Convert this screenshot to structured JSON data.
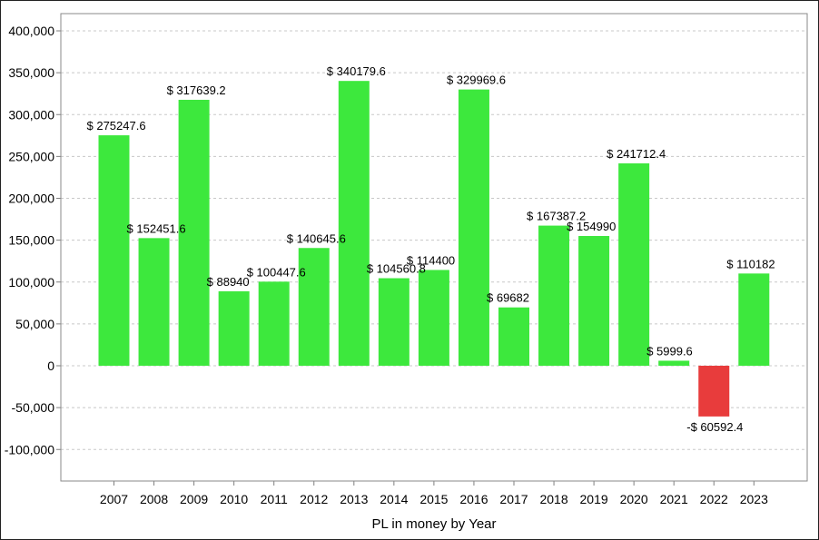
{
  "chart_data": {
    "type": "bar",
    "xlabel": "PL in money by Year",
    "ylabel": "",
    "title": "",
    "ylim": [
      -140000,
      400000
    ],
    "y_ticks": [
      {
        "value": 400000,
        "label": "400,000"
      },
      {
        "value": 350000,
        "label": "350,000"
      },
      {
        "value": 300000,
        "label": "300,000"
      },
      {
        "value": 250000,
        "label": "250,000"
      },
      {
        "value": 200000,
        "label": "200,000"
      },
      {
        "value": 150000,
        "label": "150,000"
      },
      {
        "value": 100000,
        "label": "100,000"
      },
      {
        "value": 50000,
        "label": "50,000"
      },
      {
        "value": 0,
        "label": "0"
      },
      {
        "value": -50000,
        "label": "-50,000"
      },
      {
        "value": -100000,
        "label": "-100,000"
      }
    ],
    "grid": true,
    "colors": {
      "positive": "#3de83d",
      "negative": "#e83c3c",
      "grid": "#c8c8c8",
      "axis": "#7f7f7f"
    },
    "categories": [
      "2007",
      "2008",
      "2009",
      "2010",
      "2011",
      "2012",
      "2013",
      "2014",
      "2015",
      "2016",
      "2017",
      "2018",
      "2019",
      "2020",
      "2021",
      "2022",
      "2023"
    ],
    "values": [
      275247.6,
      152451.6,
      317639.2,
      88940,
      100447.6,
      140645.6,
      340179.6,
      104560.8,
      114400,
      329969.6,
      69682,
      167387.2,
      154990,
      241712.4,
      5999.6,
      -60592.4,
      110182
    ],
    "data_labels": [
      "$ 275247.6",
      "$ 152451.6",
      "$ 317639.2",
      "$ 88940",
      "$ 100447.6",
      "$ 140645.6",
      "$ 340179.6",
      "$ 104560.8",
      "$ 114400",
      "$ 329969.6",
      "$ 69682",
      "$ 167387.2",
      "$ 154990",
      "$ 241712.4",
      "$ 5999.6",
      "-$ 60592.4",
      "$ 110182"
    ]
  }
}
